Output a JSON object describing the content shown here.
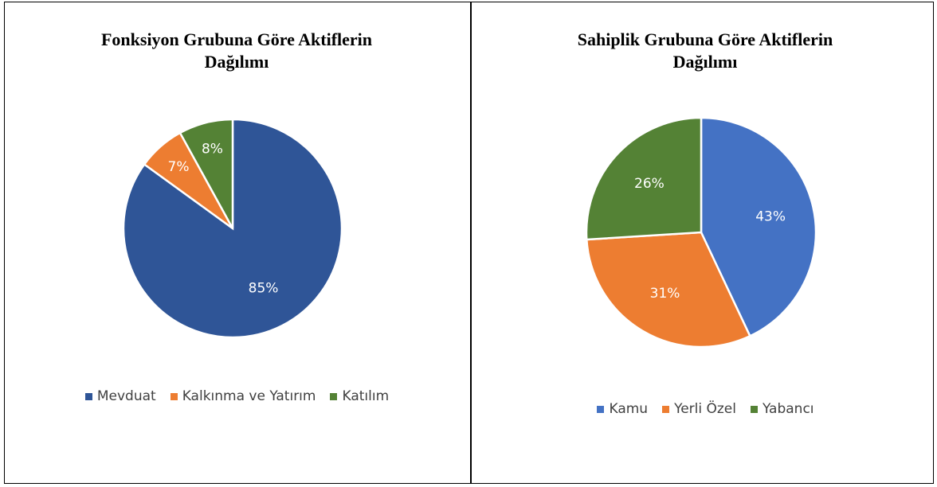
{
  "chart_data": [
    {
      "type": "pie",
      "title": "Fonksiyon Grubuna Göre Aktiflerin Dağılımı",
      "categories": [
        "Mevduat",
        "Kalkınma ve Yatırım",
        "Katılım"
      ],
      "values": [
        85,
        7,
        8
      ],
      "value_labels": [
        "85%",
        "7%",
        "8%"
      ],
      "colors": [
        "#2F5597",
        "#ED7D31",
        "#548235"
      ],
      "legend": "bottom"
    },
    {
      "type": "pie",
      "title": "Sahiplik Grubuna Göre Aktiflerin Dağılımı",
      "categories": [
        "Kamu",
        "Yerli Özel",
        "Yabancı"
      ],
      "values": [
        43,
        31,
        26
      ],
      "value_labels": [
        "43%",
        "31%",
        "26%"
      ],
      "colors": [
        "#4472C4",
        "#ED7D31",
        "#548235"
      ],
      "legend": "bottom"
    }
  ]
}
